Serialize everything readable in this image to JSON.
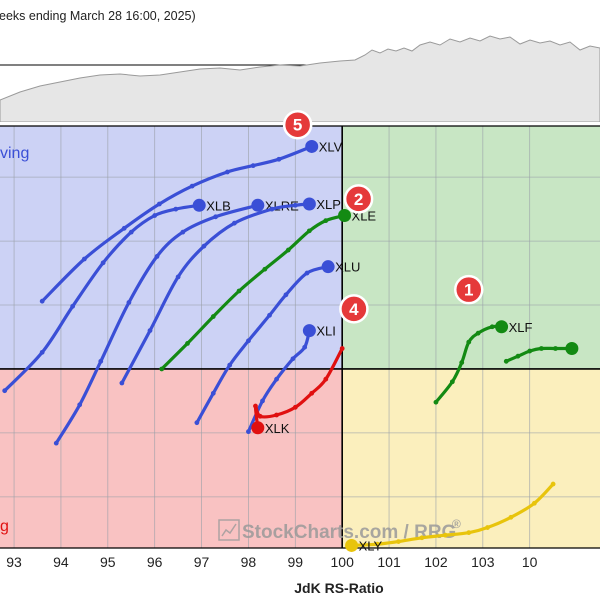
{
  "header": {
    "text": "eeks ending March 28 16:00, 2025)"
  },
  "watermark": {
    "text": "StockCharts.com / RRG",
    "registered": "®"
  },
  "colors": {
    "leading": "#c8e6c4",
    "weakening": "#fbefbd",
    "lagging": "#f9c2c2",
    "improving": "#ccd2f5",
    "blue": "#3a4fd6",
    "green": "#138a13",
    "red": "#e01010",
    "yellow": "#e8c40c",
    "badge": "#e5393a"
  },
  "chart_data": {
    "type": "scatter",
    "xlabel": "JdK RS-Ratio",
    "ylabel": "",
    "xlim": [
      92.7,
      105.5
    ],
    "ylim": [
      98.6,
      101.9
    ],
    "center": [
      100,
      100
    ],
    "x_ticks": [
      "93",
      "94",
      "95",
      "96",
      "97",
      "98",
      "99",
      "100",
      "101",
      "102",
      "103",
      "10"
    ],
    "quadrant_labels": {
      "improving": "ving",
      "lagging": "g"
    },
    "grid": true,
    "series": [
      {
        "name": "XLV",
        "color": "blue",
        "label_side": "right",
        "points": [
          [
            93.6,
            100.53
          ],
          [
            94.5,
            100.86
          ],
          [
            95.35,
            101.1
          ],
          [
            96.1,
            101.29
          ],
          [
            96.8,
            101.43
          ],
          [
            97.55,
            101.54
          ],
          [
            98.1,
            101.59
          ],
          [
            98.65,
            101.64
          ],
          [
            99.35,
            101.74
          ]
        ]
      },
      {
        "name": "XLB",
        "color": "blue",
        "label_side": "right",
        "points": [
          [
            92.8,
            99.83
          ],
          [
            93.6,
            100.13
          ],
          [
            94.25,
            100.49
          ],
          [
            94.9,
            100.83
          ],
          [
            95.5,
            101.07
          ],
          [
            96.0,
            101.2
          ],
          [
            96.45,
            101.25
          ],
          [
            96.95,
            101.28
          ]
        ]
      },
      {
        "name": "XLRE",
        "color": "blue",
        "label_side": "right",
        "points": [
          [
            93.9,
            99.42
          ],
          [
            94.4,
            99.72
          ],
          [
            94.85,
            100.06
          ],
          [
            95.45,
            100.52
          ],
          [
            96.05,
            100.88
          ],
          [
            96.6,
            101.07
          ],
          [
            97.3,
            101.19
          ],
          [
            98.2,
            101.28
          ]
        ]
      },
      {
        "name": "XLP",
        "color": "blue",
        "label_side": "right",
        "points": [
          [
            95.3,
            99.89
          ],
          [
            95.9,
            100.3
          ],
          [
            96.5,
            100.72
          ],
          [
            97.05,
            100.96
          ],
          [
            97.7,
            101.14
          ],
          [
            98.5,
            101.25
          ],
          [
            99.0,
            101.28
          ],
          [
            99.3,
            101.29
          ]
        ]
      },
      {
        "name": "XLE",
        "color": "green",
        "label_side": "right",
        "points": [
          [
            96.15,
            100.0
          ],
          [
            96.7,
            100.2
          ],
          [
            97.25,
            100.41
          ],
          [
            97.8,
            100.61
          ],
          [
            98.35,
            100.78
          ],
          [
            98.85,
            100.93
          ],
          [
            99.3,
            101.08
          ],
          [
            99.65,
            101.16
          ],
          [
            100.05,
            101.2
          ]
        ]
      },
      {
        "name": "XLU",
        "color": "blue",
        "label_side": "right",
        "points": [
          [
            96.9,
            99.58
          ],
          [
            97.25,
            99.81
          ],
          [
            97.6,
            100.03
          ],
          [
            98.0,
            100.22
          ],
          [
            98.45,
            100.42
          ],
          [
            98.8,
            100.58
          ],
          [
            99.25,
            100.75
          ],
          [
            99.7,
            100.8
          ]
        ]
      },
      {
        "name": "XLI",
        "color": "blue",
        "label_side": "right",
        "points": [
          [
            98.0,
            99.51
          ],
          [
            98.3,
            99.75
          ],
          [
            98.6,
            99.92
          ],
          [
            98.95,
            100.08
          ],
          [
            99.2,
            100.17
          ],
          [
            99.3,
            100.3
          ]
        ]
      },
      {
        "name": "XLK",
        "color": "red",
        "label_side": "right",
        "points": [
          [
            100.0,
            100.16
          ],
          [
            99.65,
            99.92
          ],
          [
            99.35,
            99.81
          ],
          [
            99.0,
            99.7
          ],
          [
            98.6,
            99.64
          ],
          [
            98.25,
            99.63
          ],
          [
            98.15,
            99.71
          ],
          [
            98.2,
            99.54
          ]
        ]
      },
      {
        "name": "XLF",
        "color": "green",
        "label_side": "right",
        "points": [
          [
            102.0,
            99.74
          ],
          [
            102.35,
            99.9
          ],
          [
            102.55,
            100.05
          ],
          [
            102.7,
            100.21
          ],
          [
            102.9,
            100.28
          ],
          [
            103.2,
            100.33
          ],
          [
            103.4,
            100.33
          ]
        ]
      },
      {
        "name": "",
        "color": "green",
        "label_side": "none",
        "points": [
          [
            103.5,
            100.06
          ],
          [
            103.75,
            100.1
          ],
          [
            104.0,
            100.14
          ],
          [
            104.25,
            100.16
          ],
          [
            104.55,
            100.16
          ],
          [
            104.9,
            100.16
          ]
        ]
      },
      {
        "name": "XLY",
        "color": "yellow",
        "label_side": "right",
        "points": [
          [
            104.5,
            99.1
          ],
          [
            104.1,
            98.95
          ],
          [
            103.6,
            98.84
          ],
          [
            103.1,
            98.76
          ],
          [
            102.7,
            98.72
          ],
          [
            102.2,
            98.7
          ],
          [
            101.7,
            98.68
          ],
          [
            101.2,
            98.65
          ],
          [
            100.75,
            98.63
          ],
          [
            100.2,
            98.62
          ]
        ]
      }
    ],
    "badges": [
      {
        "text": "5",
        "x": 99.05,
        "y": 101.91
      },
      {
        "text": "2",
        "x": 100.35,
        "y": 101.33
      },
      {
        "text": "4",
        "x": 100.25,
        "y": 100.47
      },
      {
        "text": "1",
        "x": 102.7,
        "y": 100.62
      }
    ]
  }
}
